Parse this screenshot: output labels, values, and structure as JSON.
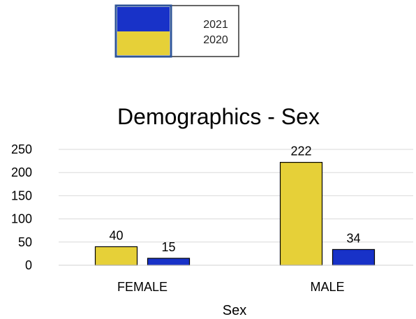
{
  "chart_data": {
    "type": "bar",
    "title": "Demographics - Sex",
    "xlabel": "Sex",
    "ylabel": "",
    "categories": [
      "FEMALE",
      "MALE"
    ],
    "series": [
      {
        "name": "2020",
        "values": [
          40,
          222
        ],
        "color": "#E6D038"
      },
      {
        "name": "2021",
        "values": [
          15,
          34
        ],
        "color": "#1832C8"
      }
    ],
    "ylim": [
      0,
      250
    ],
    "yticks": [
      0,
      50,
      100,
      150,
      200,
      250
    ],
    "grid": true,
    "legend": {
      "placement": "top",
      "entries": [
        "2021",
        "2020"
      ]
    }
  }
}
